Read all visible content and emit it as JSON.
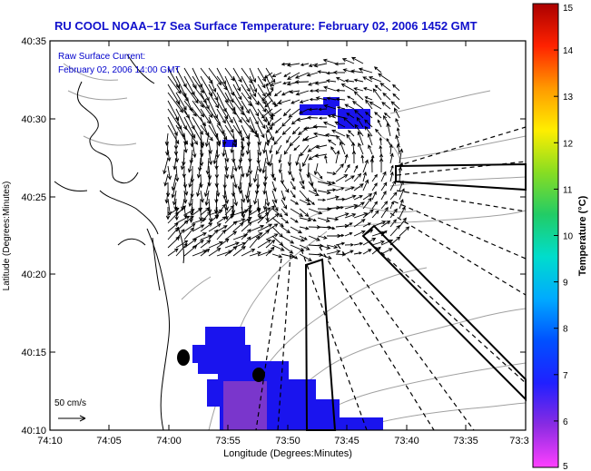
{
  "title": "RU COOL  NOAA–17  Sea Surface Temperature:  February 02, 2006 1452 GMT",
  "overlay": {
    "line1": "Raw Surface Current:",
    "line2": "February 02, 2006 14:00 GMT"
  },
  "scale": {
    "label": "50 cm/s"
  },
  "axes": {
    "xlabel": "Longitude (Degrees:Minutes)",
    "ylabel": "Latitude (Degrees:Minutes)",
    "xticks": [
      "74:10",
      "74:05",
      "74:00",
      "73:55",
      "73:50",
      "73:45",
      "73:40",
      "73:35",
      "73:3"
    ],
    "yticks": [
      "40:35",
      "40:30",
      "40:25",
      "40:20",
      "40:15",
      "40:10"
    ]
  },
  "colorbar": {
    "label": "Temperature (°C)",
    "min": 5,
    "max": 15,
    "ticks": [
      "15",
      "14",
      "13",
      "12",
      "11",
      "10",
      "9",
      "8",
      "7",
      "6",
      "5"
    ],
    "colors": [
      "#ff40ff",
      "#8a2be2",
      "#2020ff",
      "#0050ff",
      "#00aaff",
      "#00ddcc",
      "#22cc66",
      "#88dd22",
      "#ffee00",
      "#ff9900",
      "#ff2200",
      "#aa0000"
    ]
  },
  "colors": {
    "land_contour": "#000000",
    "bathymetry": "#999999",
    "sst_cold": "#1010ee",
    "sst_colder": "#7030d0",
    "text_blue": "#0000cc"
  }
}
